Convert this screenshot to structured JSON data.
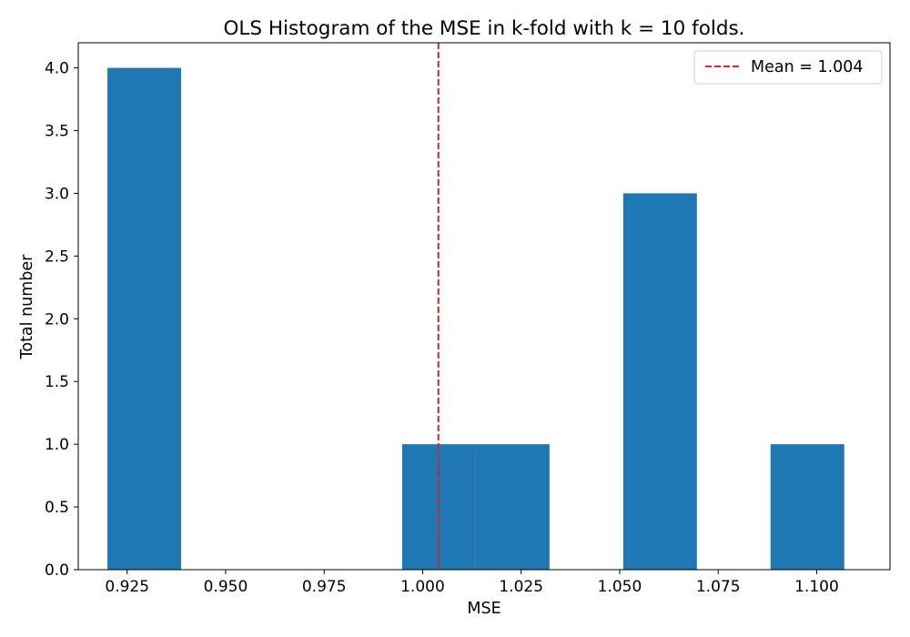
{
  "chart_data": {
    "type": "bar",
    "title": "OLS Histogram of the MSE in k-fold with k = 10 folds.",
    "xlabel": "MSE",
    "ylabel": "Total number",
    "xlim": [
      0.9126,
      1.1186
    ],
    "ylim": [
      0.0,
      4.2
    ],
    "xticks": [
      0.925,
      0.95,
      0.975,
      1.0,
      1.025,
      1.05,
      1.075,
      1.1
    ],
    "xtick_labels": [
      "0.925",
      "0.950",
      "0.975",
      "1.000",
      "1.025",
      "1.050",
      "1.075",
      "1.100"
    ],
    "yticks": [
      0.0,
      0.5,
      1.0,
      1.5,
      2.0,
      2.5,
      3.0,
      3.5,
      4.0
    ],
    "ytick_labels": [
      "0.0",
      "0.5",
      "1.0",
      "1.5",
      "2.0",
      "2.5",
      "3.0",
      "3.5",
      "4.0"
    ],
    "bins": [
      {
        "left": 0.92,
        "right": 0.9387,
        "count": 4
      },
      {
        "left": 0.9387,
        "right": 0.9574,
        "count": 0
      },
      {
        "left": 0.9574,
        "right": 0.9761,
        "count": 0
      },
      {
        "left": 0.9761,
        "right": 0.9948,
        "count": 0
      },
      {
        "left": 0.9948,
        "right": 1.0135,
        "count": 1
      },
      {
        "left": 1.0135,
        "right": 1.0322,
        "count": 1
      },
      {
        "left": 1.0322,
        "right": 1.0509,
        "count": 0
      },
      {
        "left": 1.0509,
        "right": 1.0696,
        "count": 3
      },
      {
        "left": 1.0696,
        "right": 1.0883,
        "count": 0
      },
      {
        "left": 1.0883,
        "right": 1.107,
        "count": 1
      }
    ],
    "mean_line": {
      "value": 1.004,
      "label": "Mean = 1.004",
      "color": "#d62728",
      "style": "dashed"
    },
    "bar_color": "#1f77b4",
    "legend_position": "top-right",
    "grid": false
  }
}
